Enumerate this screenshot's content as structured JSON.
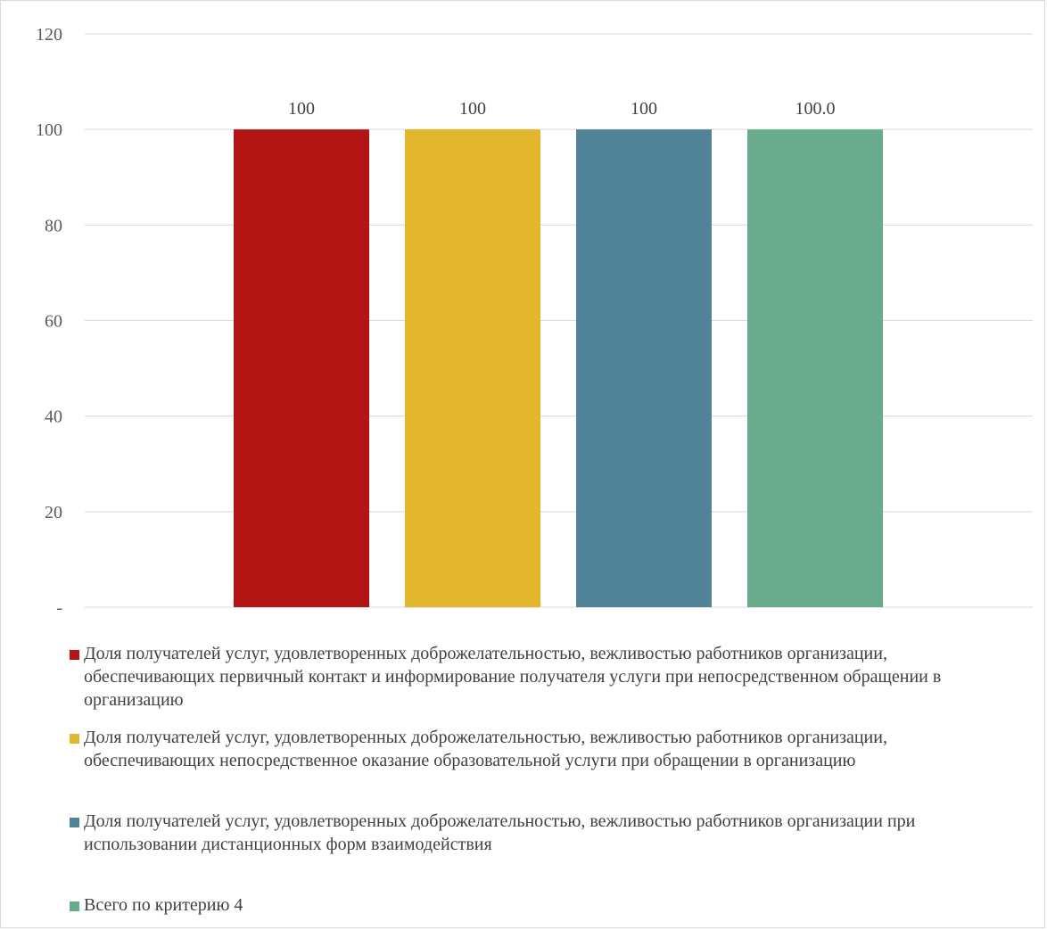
{
  "chart_data": {
    "type": "bar",
    "categories": [
      ""
    ],
    "series": [
      {
        "name": "Доля получателей услуг, удовлетворенных доброжелательностью, вежливостью работников организации, обеспечивающих первичный контакт и информирование получателя услуги при непосредственном обращении в организацию",
        "values": [
          100
        ],
        "label": "100",
        "color": "#b31515"
      },
      {
        "name": "Доля получателей услуг, удовлетворенных доброжелательностью, вежливостью работников организации, обеспечивающих непосредственное оказание образовательной услуги при обращении в организацию",
        "values": [
          100
        ],
        "label": "100",
        "color": "#e3b72b"
      },
      {
        "name": "Доля получателей услуг, удовлетворенных доброжелательностью, вежливостью работников организации при использовании дистанционных форм взаимодействия",
        "values": [
          100
        ],
        "label": "100",
        "color": "#528499"
      },
      {
        "name": "Всего по критерию 4",
        "values": [
          100
        ],
        "label": "100.0",
        "color": "#68ac8c"
      }
    ],
    "title": "",
    "xlabel": "",
    "ylabel": "",
    "ylim": [
      0,
      120
    ],
    "yticks": [
      {
        "value": 0,
        "label": "-"
      },
      {
        "value": 20,
        "label": "20"
      },
      {
        "value": 40,
        "label": "40"
      },
      {
        "value": 60,
        "label": "60"
      },
      {
        "value": 80,
        "label": "80"
      },
      {
        "value": 100,
        "label": "100"
      },
      {
        "value": 120,
        "label": "120"
      }
    ],
    "grid": true,
    "legend_position": "bottom"
  },
  "colors": {
    "grid": "#d9d9d9",
    "axis": "#d9d9d9"
  }
}
